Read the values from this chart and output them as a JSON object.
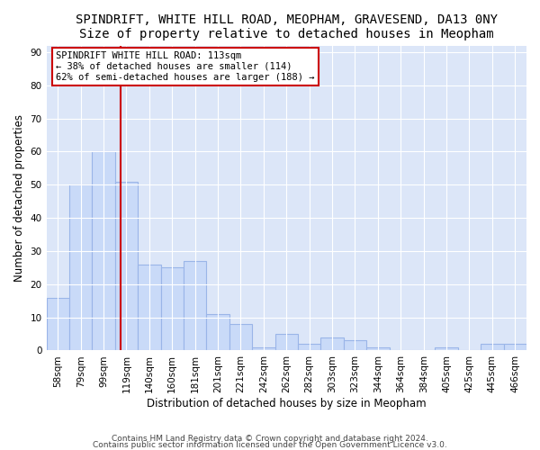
{
  "title": "SPINDRIFT, WHITE HILL ROAD, MEOPHAM, GRAVESEND, DA13 0NY",
  "subtitle": "Size of property relative to detached houses in Meopham",
  "xlabel": "Distribution of detached houses by size in Meopham",
  "ylabel": "Number of detached properties",
  "categories": [
    "58sqm",
    "79sqm",
    "99sqm",
    "119sqm",
    "140sqm",
    "160sqm",
    "181sqm",
    "201sqm",
    "221sqm",
    "242sqm",
    "262sqm",
    "282sqm",
    "303sqm",
    "323sqm",
    "344sqm",
    "364sqm",
    "384sqm",
    "405sqm",
    "425sqm",
    "445sqm",
    "466sqm"
  ],
  "values": [
    16,
    50,
    60,
    51,
    26,
    25,
    27,
    11,
    8,
    1,
    5,
    2,
    4,
    3,
    1,
    0,
    0,
    1,
    0,
    2,
    2
  ],
  "bar_color": "#c9daf8",
  "bar_edge_color": "#9ab5e8",
  "vline_x_idx": 2.75,
  "vline_color": "#cc0000",
  "annotation_text": "SPINDRIFT WHITE HILL ROAD: 113sqm\n← 38% of detached houses are smaller (114)\n62% of semi-detached houses are larger (188) →",
  "annotation_box_color": "#ffffff",
  "annotation_box_edge_color": "#cc0000",
  "ylim": [
    0,
    92
  ],
  "yticks": [
    0,
    10,
    20,
    30,
    40,
    50,
    60,
    70,
    80,
    90
  ],
  "footer_line1": "Contains HM Land Registry data © Crown copyright and database right 2024.",
  "footer_line2": "Contains public sector information licensed under the Open Government Licence v3.0.",
  "title_fontsize": 10,
  "subtitle_fontsize": 9.5,
  "label_fontsize": 8.5,
  "tick_fontsize": 7.5,
  "annotation_fontsize": 7.5,
  "footer_fontsize": 6.5,
  "bg_color": "#dce6f8",
  "plot_bg_color": "#ffffff",
  "grid_color": "#ffffff"
}
